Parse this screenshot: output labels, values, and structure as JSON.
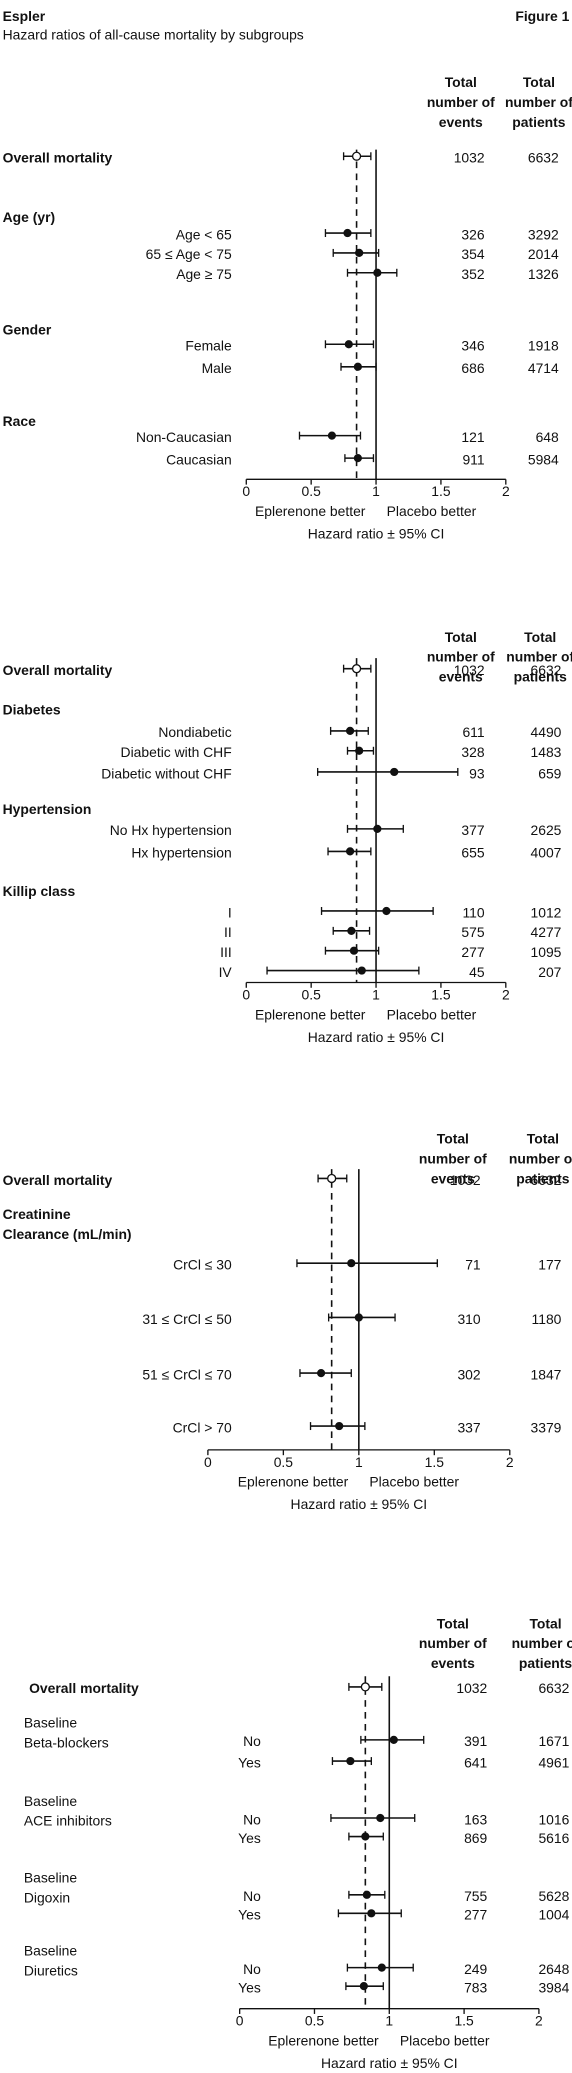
{
  "header": {
    "title": "Espler",
    "figure": "Figure 1",
    "subtitle": "Hazard ratios of all-cause mortality by subgroups"
  },
  "chart_data": [
    {
      "type": "forest",
      "xlim": [
        0,
        2
      ],
      "xticks": [
        0,
        {
          "value": 0.5,
          "label": "0.5"
        },
        1,
        {
          "value": 1.5,
          "label": "1.5"
        },
        2
      ],
      "reference": 1,
      "events_header": [
        "Total",
        "number of",
        "events"
      ],
      "patients_header": [
        "Total",
        "number of",
        "patients"
      ],
      "left_label": "Eplerenone better",
      "right_label": "Placebo better",
      "xlabel": "Hazard ratio ± 95% CI",
      "rows": [
        {
          "label": "Overall mortality",
          "bold": true,
          "open": true,
          "hr": 0.85,
          "lower": 0.75,
          "upper": 0.96,
          "events": 1032,
          "patients": 6632
        },
        {
          "label": "Age (yr)",
          "bold": true
        },
        {
          "label": "Age < 65",
          "hr": 0.78,
          "lower": 0.61,
          "upper": 0.96,
          "events": 326,
          "patients": 3292
        },
        {
          "label": "65 ≤ Age < 75",
          "hr": 0.87,
          "lower": 0.67,
          "upper": 1.02,
          "events": 354,
          "patients": 2014
        },
        {
          "label": "Age ≥ 75",
          "hr": 1.01,
          "lower": 0.78,
          "upper": 1.16,
          "events": 352,
          "patients": 1326
        },
        {
          "label": "Gender",
          "bold": true
        },
        {
          "label": "Female",
          "hr": 0.79,
          "lower": 0.61,
          "upper": 0.98,
          "events": 346,
          "patients": 1918
        },
        {
          "label": "Male",
          "hr": 0.86,
          "lower": 0.73,
          "upper": 1.0,
          "events": 686,
          "patients": 4714
        },
        {
          "label": "Race",
          "bold": true
        },
        {
          "label": "Non-Caucasian",
          "hr": 0.66,
          "lower": 0.41,
          "upper": 0.88,
          "events": 121,
          "patients": 648
        },
        {
          "label": "Caucasian",
          "hr": 0.86,
          "lower": 0.76,
          "upper": 0.98,
          "events": 911,
          "patients": 5984
        }
      ]
    },
    {
      "type": "forest",
      "xlim": [
        0,
        2
      ],
      "xticks": [
        0,
        {
          "value": 0.5,
          "label": "0.5"
        },
        1,
        {
          "value": 1.5,
          "label": "1.5"
        },
        2
      ],
      "reference": 1,
      "events_header": [
        "Total",
        "number of",
        "events"
      ],
      "patients_header": [
        "Total",
        "number of",
        "patients"
      ],
      "left_label": "Eplerenone better",
      "right_label": "Placebo better",
      "xlabel": "Hazard ratio ± 95% CI",
      "rows": [
        {
          "label": "Overall mortality",
          "bold": true,
          "open": true,
          "hr": 0.85,
          "lower": 0.75,
          "upper": 0.96,
          "events": 1032,
          "patients": 6632
        },
        {
          "label": "Diabetes",
          "bold": true
        },
        {
          "label": "Nondiabetic",
          "hr": 0.8,
          "lower": 0.65,
          "upper": 0.94,
          "events": 611,
          "patients": 4490
        },
        {
          "label": "Diabetic with CHF",
          "hr": 0.87,
          "lower": 0.78,
          "upper": 0.98,
          "events": 328,
          "patients": 1483
        },
        {
          "label": "Diabetic without CHF",
          "hr": 1.14,
          "lower": 0.55,
          "upper": 1.63,
          "events": 93,
          "patients": 659
        },
        {
          "label": "Hypertension",
          "bold": true
        },
        {
          "label": "No Hx hypertension",
          "hr": 1.01,
          "lower": 0.78,
          "upper": 1.21,
          "events": 377,
          "patients": 2625
        },
        {
          "label": "Hx hypertension",
          "hr": 0.8,
          "lower": 0.63,
          "upper": 0.96,
          "events": 655,
          "patients": 4007
        },
        {
          "label": "Killip class",
          "bold": true
        },
        {
          "label": "I",
          "hr": 1.08,
          "lower": 0.58,
          "upper": 1.44,
          "events": 110,
          "patients": 1012
        },
        {
          "label": "II",
          "hr": 0.81,
          "lower": 0.67,
          "upper": 0.95,
          "events": 575,
          "patients": 4277
        },
        {
          "label": "III",
          "hr": 0.83,
          "lower": 0.61,
          "upper": 1.02,
          "events": 277,
          "patients": 1095
        },
        {
          "label": "IV",
          "hr": 0.89,
          "lower": 0.16,
          "upper": 1.33,
          "events": 45,
          "patients": 207
        }
      ]
    },
    {
      "type": "forest",
      "xlim": [
        0,
        2
      ],
      "xticks": [
        0,
        {
          "value": 0.5,
          "label": "0.5"
        },
        1,
        {
          "value": 1.5,
          "label": "1.5"
        },
        2
      ],
      "reference": 1,
      "events_header": [
        "Total",
        "number of",
        "events"
      ],
      "patients_header": [
        "Total",
        "number of",
        "patients"
      ],
      "left_label": "Eplerenone better",
      "right_label": "Placebo better",
      "xlabel": "Hazard ratio ± 95% CI",
      "rows": [
        {
          "label": "Overall mortality",
          "bold": true,
          "open": true,
          "hr": 0.82,
          "lower": 0.73,
          "upper": 0.92,
          "events": 1032,
          "patients": 6632
        },
        {
          "label": [
            "Creatinine",
            "Clearance (mL/min)"
          ],
          "bold": true
        },
        {
          "label": "CrCl ≤ 30",
          "hr": 0.95,
          "lower": 0.59,
          "upper": 1.52,
          "events": 71,
          "patients": 177
        },
        {
          "label": "31 ≤ CrCl ≤ 50",
          "hr": 1.0,
          "lower": 0.8,
          "upper": 1.24,
          "events": 310,
          "patients": 1180
        },
        {
          "label": "51 ≤ CrCl ≤ 70",
          "hr": 0.75,
          "lower": 0.61,
          "upper": 0.95,
          "events": 302,
          "patients": 1847
        },
        {
          "label": "CrCl > 70",
          "hr": 0.87,
          "lower": 0.68,
          "upper": 1.04,
          "events": 337,
          "patients": 3379
        }
      ]
    },
    {
      "type": "forest",
      "xlim": [
        0,
        2
      ],
      "xticks": [
        0,
        {
          "value": 0.5,
          "label": "0.5"
        },
        1,
        {
          "value": 1.5,
          "label": "1.5"
        },
        2
      ],
      "reference": 1,
      "events_header": [
        "Total",
        "number of",
        "events"
      ],
      "patients_header": [
        "Total",
        "number of",
        "patients"
      ],
      "left_label": "Eplerenone better",
      "right_label": "Placebo better",
      "xlabel": "Hazard ratio ± 95% CI",
      "rows": [
        {
          "label": "Overall mortality",
          "bold": true,
          "open": true,
          "hr": 0.84,
          "lower": 0.73,
          "upper": 0.95,
          "events": 1032,
          "patients": 6632
        },
        {
          "group": [
            "Baseline",
            "Beta-blockers"
          ],
          "label": "No",
          "hr": 1.03,
          "lower": 0.81,
          "upper": 1.23,
          "events": 391,
          "patients": 1671
        },
        {
          "label": "Yes",
          "hr": 0.74,
          "lower": 0.62,
          "upper": 0.88,
          "events": 641,
          "patients": 4961
        },
        {
          "group": [
            "Baseline",
            "ACE inhibitors"
          ],
          "label": "No",
          "hr": 0.94,
          "lower": 0.61,
          "upper": 1.17,
          "events": 163,
          "patients": 1016
        },
        {
          "label": "Yes",
          "hr": 0.84,
          "lower": 0.73,
          "upper": 0.96,
          "events": 869,
          "patients": 5616
        },
        {
          "group": [
            "Baseline",
            "Digoxin"
          ],
          "label": "No",
          "hr": 0.85,
          "lower": 0.73,
          "upper": 0.97,
          "events": 755,
          "patients": 5628
        },
        {
          "label": "Yes",
          "hr": 0.88,
          "lower": 0.66,
          "upper": 1.08,
          "events": 277,
          "patients": 1004
        },
        {
          "group": [
            "Baseline",
            "Diuretics"
          ],
          "label": "No",
          "hr": 0.95,
          "lower": 0.72,
          "upper": 1.16,
          "events": 249,
          "patients": 2648
        },
        {
          "label": "Yes",
          "hr": 0.83,
          "lower": 0.71,
          "upper": 0.96,
          "events": 783,
          "patients": 3984
        }
      ]
    }
  ]
}
